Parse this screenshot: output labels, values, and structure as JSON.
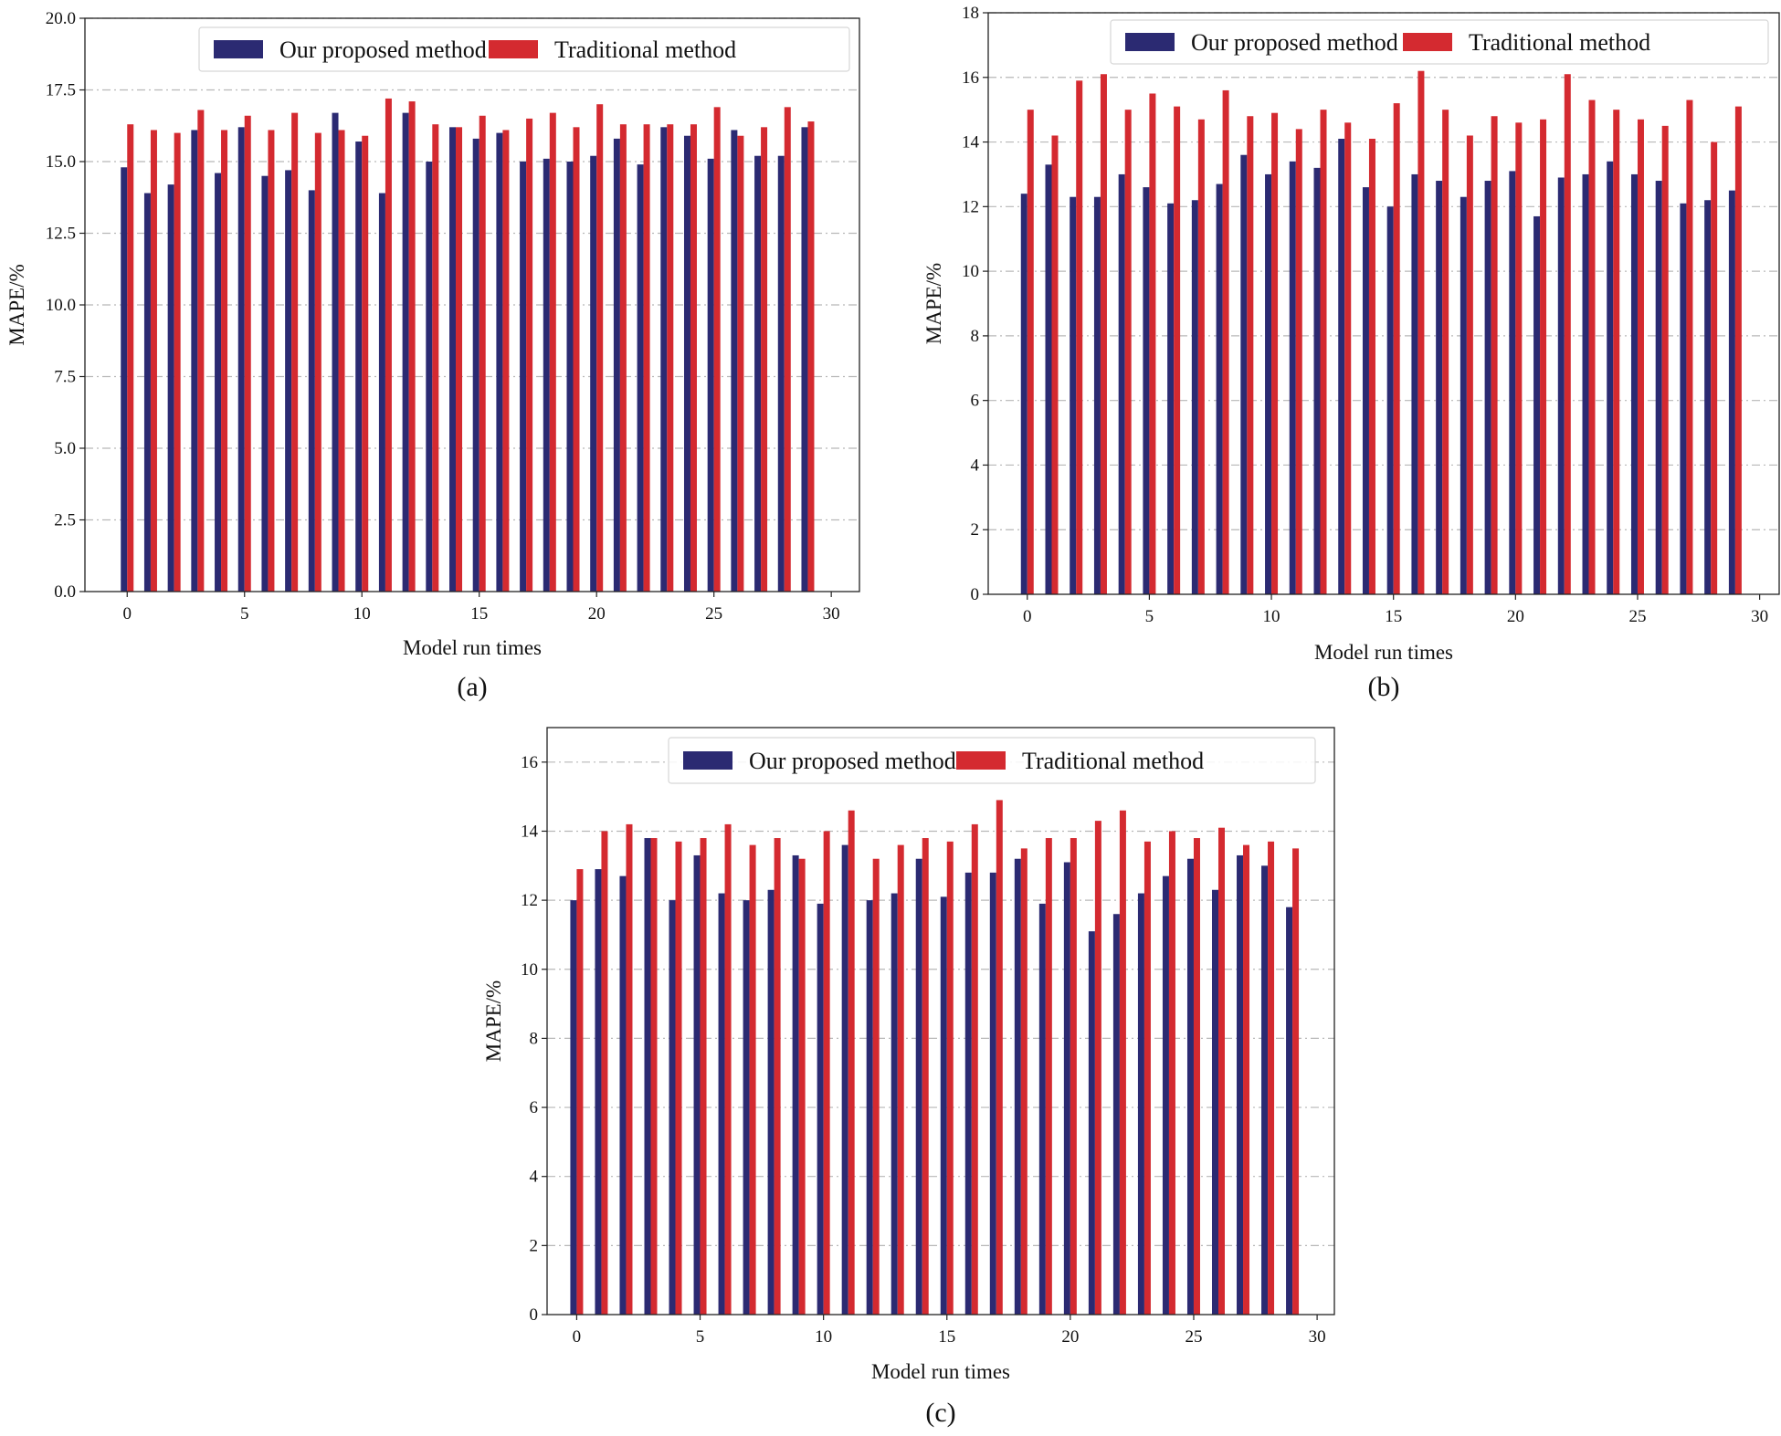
{
  "colors": {
    "proposed": "#2b2a72",
    "traditional": "#d42a30",
    "grid": "#b8b8b8",
    "axis": "#222222",
    "legend_border": "#d6d6d6"
  },
  "chart_data": [
    {
      "type": "bar",
      "panel_label": "(a)",
      "xlabel": "Model run times",
      "ylabel": "MAPE/%",
      "xlim": [
        -1.8,
        31.2
      ],
      "ylim": [
        0,
        20
      ],
      "xticks": [
        0,
        5,
        10,
        15,
        20,
        25,
        30
      ],
      "yticks": [
        0,
        2.5,
        5,
        7.5,
        10,
        12.5,
        15,
        17.5,
        20
      ],
      "ytick_labels": [
        "0.0",
        "2.5",
        "5.0",
        "7.5",
        "10.0",
        "12.5",
        "15.0",
        "17.5",
        "20.0"
      ],
      "grid": "horizontal dash-dot",
      "legend_position": "top-right",
      "x": [
        0,
        1,
        2,
        3,
        4,
        5,
        6,
        7,
        8,
        9,
        10,
        11,
        12,
        13,
        14,
        15,
        16,
        17,
        18,
        19,
        20,
        21,
        22,
        23,
        24,
        25,
        26,
        27,
        28,
        29
      ],
      "series": [
        {
          "name": "Our proposed method",
          "color_key": "proposed",
          "values": [
            14.8,
            13.9,
            14.2,
            16.1,
            14.6,
            16.2,
            14.5,
            14.7,
            14.0,
            16.7,
            15.7,
            13.9,
            16.7,
            15.0,
            16.2,
            15.8,
            16.0,
            15.0,
            15.1,
            15.0,
            15.2,
            15.8,
            14.9,
            16.2,
            15.9,
            15.1,
            16.1,
            15.2,
            15.2,
            16.2
          ]
        },
        {
          "name": "Traditional method",
          "color_key": "traditional",
          "values": [
            16.3,
            16.1,
            16.0,
            16.8,
            16.1,
            16.6,
            16.1,
            16.7,
            16.0,
            16.1,
            15.9,
            17.2,
            17.1,
            16.3,
            16.2,
            16.6,
            16.1,
            16.5,
            16.7,
            16.2,
            17.0,
            16.3,
            16.3,
            16.3,
            16.3,
            16.9,
            15.9,
            16.2,
            16.9,
            16.4
          ]
        }
      ]
    },
    {
      "type": "bar",
      "panel_label": "(b)",
      "xlabel": "Model run times",
      "ylabel": "MAPE/%",
      "xlim": [
        -1.6,
        30.8
      ],
      "ylim": [
        0,
        18
      ],
      "xticks": [
        0,
        5,
        10,
        15,
        20,
        25,
        30
      ],
      "yticks": [
        0,
        2,
        4,
        6,
        8,
        10,
        12,
        14,
        16,
        18
      ],
      "ytick_labels": [
        "0",
        "2",
        "4",
        "6",
        "8",
        "10",
        "12",
        "14",
        "16",
        "18"
      ],
      "grid": "horizontal dash-dot",
      "legend_position": "top-right",
      "x": [
        0,
        1,
        2,
        3,
        4,
        5,
        6,
        7,
        8,
        9,
        10,
        11,
        12,
        13,
        14,
        15,
        16,
        17,
        18,
        19,
        20,
        21,
        22,
        23,
        24,
        25,
        26,
        27,
        28,
        29
      ],
      "series": [
        {
          "name": "Our proposed method",
          "color_key": "proposed",
          "values": [
            12.4,
            13.3,
            12.3,
            12.3,
            13.0,
            12.6,
            12.1,
            12.2,
            12.7,
            13.6,
            13.0,
            13.4,
            13.2,
            14.1,
            12.6,
            12.0,
            13.0,
            12.8,
            12.3,
            12.8,
            13.1,
            11.7,
            12.9,
            13.0,
            13.4,
            13.0,
            12.8,
            12.1,
            12.2,
            12.5
          ]
        },
        {
          "name": "Traditional method",
          "color_key": "traditional",
          "values": [
            15.0,
            14.2,
            15.9,
            16.1,
            15.0,
            15.5,
            15.1,
            14.7,
            15.6,
            14.8,
            14.9,
            14.4,
            15.0,
            14.6,
            14.1,
            15.2,
            16.2,
            15.0,
            14.2,
            14.8,
            14.6,
            14.7,
            16.1,
            15.3,
            15.0,
            14.7,
            14.5,
            15.3,
            14.0,
            15.1
          ]
        }
      ]
    },
    {
      "type": "bar",
      "panel_label": "(c)",
      "xlabel": "Model run times",
      "ylabel": "MAPE/%",
      "xlim": [
        -1.2,
        30.7
      ],
      "ylim": [
        0,
        17
      ],
      "xticks": [
        0,
        5,
        10,
        15,
        20,
        25,
        30
      ],
      "yticks": [
        0,
        2,
        4,
        6,
        8,
        10,
        12,
        14,
        16
      ],
      "ytick_labels": [
        "0",
        "2",
        "4",
        "6",
        "8",
        "10",
        "12",
        "14",
        "16"
      ],
      "grid": "horizontal dash-dot",
      "legend_position": "top-right",
      "x": [
        0,
        1,
        2,
        3,
        4,
        5,
        6,
        7,
        8,
        9,
        10,
        11,
        12,
        13,
        14,
        15,
        16,
        17,
        18,
        19,
        20,
        21,
        22,
        23,
        24,
        25,
        26,
        27,
        28,
        29
      ],
      "series": [
        {
          "name": "Our proposed method",
          "color_key": "proposed",
          "values": [
            12.0,
            12.9,
            12.7,
            13.8,
            12.0,
            13.3,
            12.2,
            12.0,
            12.3,
            13.3,
            11.9,
            13.6,
            12.0,
            12.2,
            13.2,
            12.1,
            12.8,
            12.8,
            13.2,
            11.9,
            13.1,
            11.1,
            11.6,
            12.2,
            12.7,
            13.2,
            12.3,
            13.3,
            13.0,
            11.8
          ]
        },
        {
          "name": "Traditional method",
          "color_key": "traditional",
          "values": [
            12.9,
            14.0,
            14.2,
            13.8,
            13.7,
            13.8,
            14.2,
            13.6,
            13.8,
            13.2,
            14.0,
            14.6,
            13.2,
            13.6,
            13.8,
            13.7,
            14.2,
            14.9,
            13.5,
            13.8,
            13.8,
            14.3,
            14.6,
            13.7,
            14.0,
            13.8,
            14.1,
            13.6,
            13.7,
            13.5
          ]
        }
      ]
    }
  ]
}
